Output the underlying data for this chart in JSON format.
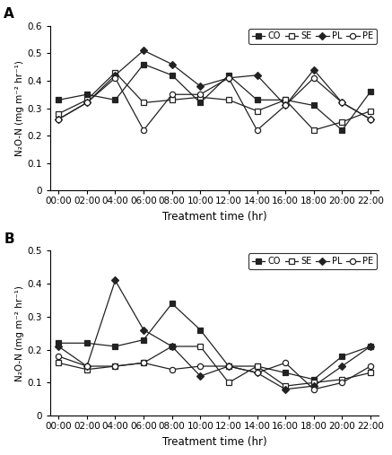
{
  "x_labels": [
    "00:00",
    "02:00",
    "04:00",
    "06:00",
    "08:00",
    "10:00",
    "12:00",
    "14:00",
    "16:00",
    "18:00",
    "20:00",
    "22:00"
  ],
  "panel_A": {
    "CO": [
      0.33,
      0.35,
      0.33,
      0.46,
      0.42,
      0.32,
      0.42,
      0.33,
      0.33,
      0.31,
      0.22,
      0.36
    ],
    "SE": [
      0.28,
      0.33,
      0.43,
      0.32,
      0.33,
      0.34,
      0.33,
      0.29,
      0.33,
      0.22,
      0.25,
      0.29
    ],
    "PL": [
      0.26,
      0.32,
      0.42,
      0.51,
      0.46,
      0.38,
      0.41,
      0.42,
      0.31,
      0.44,
      0.32,
      0.26
    ],
    "PE": [
      0.26,
      0.32,
      0.41,
      0.22,
      0.35,
      0.35,
      0.41,
      0.22,
      0.31,
      0.41,
      0.32,
      0.26
    ]
  },
  "panel_B": {
    "CO": [
      0.22,
      0.22,
      0.21,
      0.23,
      0.34,
      0.26,
      0.15,
      0.15,
      0.13,
      0.11,
      0.18,
      0.21
    ],
    "SE": [
      0.16,
      0.14,
      0.15,
      0.16,
      0.21,
      0.21,
      0.1,
      0.15,
      0.09,
      0.1,
      0.11,
      0.13
    ],
    "PL": [
      0.21,
      0.15,
      0.41,
      0.26,
      0.21,
      0.12,
      0.15,
      0.13,
      0.08,
      0.09,
      0.15,
      0.21
    ],
    "PE": [
      0.18,
      0.15,
      0.15,
      0.16,
      0.14,
      0.15,
      0.15,
      0.13,
      0.16,
      0.08,
      0.1,
      0.15
    ]
  },
  "series_styles": {
    "CO": {
      "marker": "s",
      "fillstyle": "full",
      "color": "#222222",
      "linestyle": "-"
    },
    "SE": {
      "marker": "s",
      "fillstyle": "none",
      "color": "#222222",
      "linestyle": "-"
    },
    "PL": {
      "marker": "D",
      "fillstyle": "full",
      "color": "#222222",
      "linestyle": "-"
    },
    "PE": {
      "marker": "o",
      "fillstyle": "none",
      "color": "#222222",
      "linestyle": "-"
    }
  },
  "ylabel": "N₂O-N (mg m⁻² hr⁻¹)",
  "xlabel": "Treatment time (hr)",
  "ylim_A": [
    0,
    0.6
  ],
  "ylim_B": [
    0,
    0.5
  ],
  "yticks_A": [
    0,
    0.1,
    0.2,
    0.3,
    0.4,
    0.5,
    0.6
  ],
  "yticks_B": [
    0,
    0.1,
    0.2,
    0.3,
    0.4,
    0.5
  ],
  "background": "#ffffff",
  "legend_order": [
    "CO",
    "SE",
    "PL",
    "PE"
  ]
}
